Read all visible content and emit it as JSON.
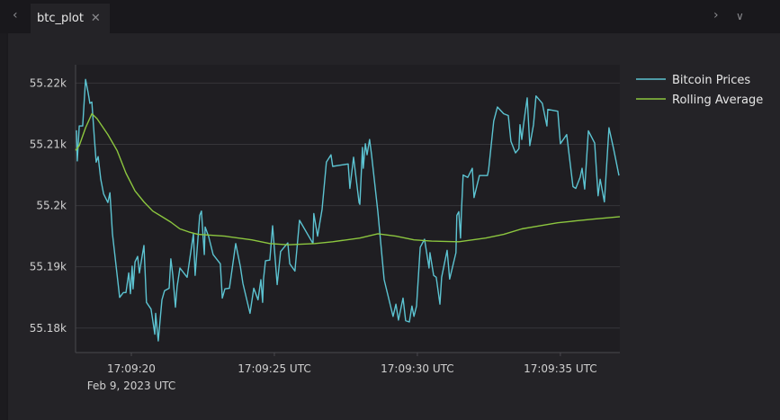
{
  "tabbar": {
    "tab_label": "btc_plot",
    "back_icon": "chevron-left-icon",
    "close_icon": "close-icon",
    "forward_icon": "chevron-right-icon",
    "menu_icon": "chevron-down-icon"
  },
  "colors": {
    "bitcoin": "#5cc3d1",
    "rolling": "#8cc63f",
    "background": "#242327",
    "grid": "#36353a"
  },
  "chart_data": {
    "type": "line",
    "title": "",
    "xlabel": "",
    "ylabel": "",
    "ylim": [
      55176,
      55223
    ],
    "xlim": [
      "17:09:18.05",
      "17:09:37.08"
    ],
    "grid": "horizontal",
    "legend_position": "top-right",
    "yticks": [
      55220,
      55210,
      55200,
      55190,
      55180
    ],
    "ytick_labels": [
      "55.22k",
      "55.21k",
      "55.2k",
      "55.19k",
      "55.18k"
    ],
    "xticks": [
      "17:09:20",
      "17:09:25",
      "17:09:30",
      "17:09:35"
    ],
    "xtick_labels": [
      "17:09:20",
      "17:09:25 UTC",
      "17:09:30 UTC",
      "17:09:35 UTC"
    ],
    "xtick_sublabel": "Feb 9, 2023 UTC",
    "series": [
      {
        "name": "Bitcoin Prices",
        "points": [
          [
            "17:09:18.08",
            55212.3
          ],
          [
            "17:09:18.11",
            55207.3
          ],
          [
            "17:09:18.18",
            55213.0
          ],
          [
            "17:09:18.30",
            55213.0
          ],
          [
            "17:09:18.40",
            55220.6
          ],
          [
            "17:09:18.49",
            55218.4
          ],
          [
            "17:09:18.55",
            55216.7
          ],
          [
            "17:09:18.62",
            55216.9
          ],
          [
            "17:09:18.71",
            55210.8
          ],
          [
            "17:09:18.77",
            55207.1
          ],
          [
            "17:09:18.84",
            55208.0
          ],
          [
            "17:09:18.93",
            55204.3
          ],
          [
            "17:09:19.03",
            55201.9
          ],
          [
            "17:09:19.18",
            55200.5
          ],
          [
            "17:09:19.25",
            55202.1
          ],
          [
            "17:09:19.34",
            55195.4
          ],
          [
            "17:09:19.59",
            55185.0
          ],
          [
            "17:09:19.72",
            55185.8
          ],
          [
            "17:09:19.81",
            55185.8
          ],
          [
            "17:09:19.91",
            55189.0
          ],
          [
            "17:09:19.97",
            55185.6
          ],
          [
            "17:09:20.03",
            55190.1
          ],
          [
            "17:09:20.06",
            55186.4
          ],
          [
            "17:09:20.13",
            55190.8
          ],
          [
            "17:09:20.22",
            55191.7
          ],
          [
            "17:09:20.28",
            55189.0
          ],
          [
            "17:09:20.44",
            55193.5
          ],
          [
            "17:09:20.53",
            55184.2
          ],
          [
            "17:09:20.69",
            55183.1
          ],
          [
            "17:09:20.82",
            55179.0
          ],
          [
            "17:09:20.85",
            55182.4
          ],
          [
            "17:09:20.94",
            55177.9
          ],
          [
            "17:09:21.07",
            55184.6
          ],
          [
            "17:09:21.16",
            55186.1
          ],
          [
            "17:09:21.32",
            55186.5
          ],
          [
            "17:09:21.38",
            55191.3
          ],
          [
            "17:09:21.45",
            55188.6
          ],
          [
            "17:09:21.54",
            55183.4
          ],
          [
            "17:09:21.60",
            55186.8
          ],
          [
            "17:09:21.70",
            55189.8
          ],
          [
            "17:09:21.95",
            55188.3
          ],
          [
            "17:09:22.17",
            55195.4
          ],
          [
            "17:09:22.23",
            55188.6
          ],
          [
            "17:09:22.39",
            55198.4
          ],
          [
            "17:09:22.45",
            55199.1
          ],
          [
            "17:09:22.55",
            55192.0
          ],
          [
            "17:09:22.58",
            55196.5
          ],
          [
            "17:09:22.70",
            55195.0
          ],
          [
            "17:09:22.86",
            55192.0
          ],
          [
            "17:09:23.11",
            55190.5
          ],
          [
            "17:09:23.18",
            55184.9
          ],
          [
            "17:09:23.27",
            55186.4
          ],
          [
            "17:09:23.43",
            55186.5
          ],
          [
            "17:09:23.65",
            55193.8
          ],
          [
            "17:09:23.81",
            55190.1
          ],
          [
            "17:09:23.90",
            55187.3
          ],
          [
            "17:09:24.15",
            55182.4
          ],
          [
            "17:09:24.28",
            55186.5
          ],
          [
            "17:09:24.43",
            55184.6
          ],
          [
            "17:09:24.53",
            55187.9
          ],
          [
            "17:09:24.59",
            55184.2
          ],
          [
            "17:09:24.62",
            55188.0
          ],
          [
            "17:09:24.69",
            55191.0
          ],
          [
            "17:09:24.84",
            55191.1
          ],
          [
            "17:09:24.94",
            55196.7
          ],
          [
            "17:09:25.10",
            55187.1
          ],
          [
            "17:09:25.22",
            55192.5
          ],
          [
            "17:09:25.47",
            55193.9
          ],
          [
            "17:09:25.54",
            55190.5
          ],
          [
            "17:09:25.72",
            55189.3
          ],
          [
            "17:09:25.88",
            55197.6
          ],
          [
            "17:09:26.35",
            55193.8
          ],
          [
            "17:09:26.38",
            55198.7
          ],
          [
            "17:09:26.51",
            55195.0
          ],
          [
            "17:09:26.67",
            55199.4
          ],
          [
            "17:09:26.82",
            55207.1
          ],
          [
            "17:09:26.98",
            55208.3
          ],
          [
            "17:09:27.04",
            55206.4
          ],
          [
            "17:09:27.58",
            55206.8
          ],
          [
            "17:09:27.64",
            55202.8
          ],
          [
            "17:09:27.77",
            55207.9
          ],
          [
            "17:09:27.96",
            55200.5
          ],
          [
            "17:09:27.99",
            55200.2
          ],
          [
            "17:09:28.08",
            55209.5
          ],
          [
            "17:09:28.11",
            55206.1
          ],
          [
            "17:09:28.18",
            55210.1
          ],
          [
            "17:09:28.24",
            55208.3
          ],
          [
            "17:09:28.33",
            55210.8
          ],
          [
            "17:09:28.40",
            55208.3
          ],
          [
            "17:09:28.62",
            55199.0
          ],
          [
            "17:09:28.84",
            55187.9
          ],
          [
            "17:09:29.15",
            55181.9
          ],
          [
            "17:09:29.25",
            55183.9
          ],
          [
            "17:09:29.34",
            55181.3
          ],
          [
            "17:09:29.50",
            55184.9
          ],
          [
            "17:09:29.59",
            55181.2
          ],
          [
            "17:09:29.72",
            55181.0
          ],
          [
            "17:09:29.81",
            55183.6
          ],
          [
            "17:09:29.88",
            55181.9
          ],
          [
            "17:09:29.97",
            55183.6
          ],
          [
            "17:09:30.10",
            55193.2
          ],
          [
            "17:09:30.25",
            55194.5
          ],
          [
            "17:09:30.41",
            55189.8
          ],
          [
            "17:09:30.44",
            55192.3
          ],
          [
            "17:09:30.57",
            55188.6
          ],
          [
            "17:09:30.66",
            55188.3
          ],
          [
            "17:09:30.79",
            55183.9
          ],
          [
            "17:09:30.85",
            55188.3
          ],
          [
            "17:09:31.04",
            55192.7
          ],
          [
            "17:09:31.13",
            55188.0
          ],
          [
            "17:09:31.35",
            55192.3
          ],
          [
            "17:09:31.38",
            55198.4
          ],
          [
            "17:09:31.45",
            55199.0
          ],
          [
            "17:09:31.51",
            55194.7
          ],
          [
            "17:09:31.54",
            55199.0
          ],
          [
            "17:09:31.60",
            55205.0
          ],
          [
            "17:09:31.76",
            55204.6
          ],
          [
            "17:09:31.92",
            55206.1
          ],
          [
            "17:09:31.98",
            55201.3
          ],
          [
            "17:09:32.17",
            55204.9
          ],
          [
            "17:09:32.45",
            55204.9
          ],
          [
            "17:09:32.49",
            55205.8
          ],
          [
            "17:09:32.67",
            55213.8
          ],
          [
            "17:09:32.80",
            55216.1
          ],
          [
            "17:09:33.02",
            55215.0
          ],
          [
            "17:09:33.18",
            55214.7
          ],
          [
            "17:09:33.27",
            55210.5
          ],
          [
            "17:09:33.43",
            55208.6
          ],
          [
            "17:09:33.55",
            55209.3
          ],
          [
            "17:09:33.59",
            55213.2
          ],
          [
            "17:09:33.65",
            55210.8
          ],
          [
            "17:09:33.71",
            55213.2
          ],
          [
            "17:09:33.84",
            55217.6
          ],
          [
            "17:09:33.93",
            55209.8
          ],
          [
            "17:09:34.06",
            55213.2
          ],
          [
            "17:09:34.15",
            55217.9
          ],
          [
            "17:09:34.37",
            55216.7
          ],
          [
            "17:09:34.53",
            55213.0
          ],
          [
            "17:09:34.56",
            55215.7
          ],
          [
            "17:09:34.91",
            55215.4
          ],
          [
            "17:09:35.00",
            55210.1
          ],
          [
            "17:09:35.22",
            55211.6
          ],
          [
            "17:09:35.44",
            55203.1
          ],
          [
            "17:09:35.54",
            55202.8
          ],
          [
            "17:09:35.69",
            55204.6
          ],
          [
            "17:09:35.76",
            55206.1
          ],
          [
            "17:09:35.85",
            55202.7
          ],
          [
            "17:09:35.98",
            55212.2
          ],
          [
            "17:09:36.20",
            55210.2
          ],
          [
            "17:09:36.32",
            55201.6
          ],
          [
            "17:09:36.39",
            55204.3
          ],
          [
            "17:09:36.54",
            55200.6
          ],
          [
            "17:09:36.70",
            55212.7
          ],
          [
            "17:09:36.86",
            55209.3
          ],
          [
            "17:09:37.05",
            55204.9
          ]
        ]
      },
      {
        "name": "Rolling Average",
        "points": [
          [
            "17:09:18.05",
            55209.0
          ],
          [
            "17:09:18.18",
            55209.8
          ],
          [
            "17:09:18.40",
            55212.7
          ],
          [
            "17:09:18.62",
            55215.0
          ],
          [
            "17:09:18.80",
            55214.2
          ],
          [
            "17:09:19.18",
            55211.6
          ],
          [
            "17:09:19.50",
            55209.0
          ],
          [
            "17:09:19.81",
            55205.3
          ],
          [
            "17:09:20.13",
            55202.4
          ],
          [
            "17:09:20.44",
            55200.6
          ],
          [
            "17:09:20.75",
            55199.1
          ],
          [
            "17:09:21.07",
            55198.2
          ],
          [
            "17:09:21.38",
            55197.3
          ],
          [
            "17:09:21.70",
            55196.2
          ],
          [
            "17:09:22.01",
            55195.7
          ],
          [
            "17:09:22.33",
            55195.3
          ],
          [
            "17:09:23.27",
            55195.0
          ],
          [
            "17:09:24.21",
            55194.4
          ],
          [
            "17:09:24.84",
            55193.8
          ],
          [
            "17:09:25.47",
            55193.6
          ],
          [
            "17:09:26.42",
            55193.8
          ],
          [
            "17:09:27.04",
            55194.1
          ],
          [
            "17:09:27.99",
            55194.7
          ],
          [
            "17:09:28.62",
            55195.4
          ],
          [
            "17:09:29.25",
            55195.0
          ],
          [
            "17:09:29.88",
            55194.4
          ],
          [
            "17:09:30.50",
            55194.2
          ],
          [
            "17:09:31.45",
            55194.1
          ],
          [
            "17:09:32.39",
            55194.7
          ],
          [
            "17:09:33.02",
            55195.3
          ],
          [
            "17:09:33.65",
            55196.2
          ],
          [
            "17:09:34.28",
            55196.7
          ],
          [
            "17:09:34.91",
            55197.2
          ],
          [
            "17:09:35.54",
            55197.5
          ],
          [
            "17:09:36.17",
            55197.8
          ],
          [
            "17:09:37.08",
            55198.2
          ]
        ]
      }
    ]
  }
}
